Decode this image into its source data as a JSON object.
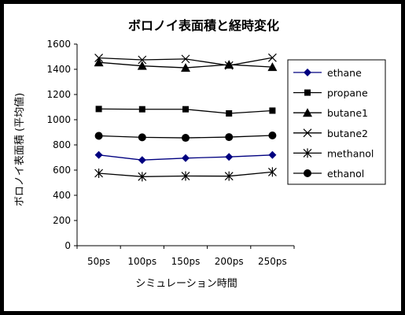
{
  "chart_data": {
    "type": "line",
    "title": "ボロノイ表面積と経時変化",
    "xlabel": "シミュレーション時間",
    "ylabel": "ボロノイ表面積 (平均値)",
    "categories": [
      "50ps",
      "100ps",
      "150ps",
      "200ps",
      "250ps"
    ],
    "ylim": [
      0,
      1600
    ],
    "yticks": [
      0,
      200,
      400,
      600,
      800,
      1000,
      1200,
      1400,
      1600
    ],
    "grid": false,
    "legend_position": "right",
    "series": [
      {
        "name": "ethane",
        "marker": "diamond",
        "color": "#000080",
        "values": [
          720,
          680,
          695,
          705,
          720
        ]
      },
      {
        "name": "propane",
        "marker": "square",
        "color": "#000000",
        "values": [
          1085,
          1083,
          1083,
          1050,
          1072
        ]
      },
      {
        "name": "butane1",
        "marker": "triangle",
        "color": "#000000",
        "values": [
          1455,
          1427,
          1412,
          1437,
          1418
        ]
      },
      {
        "name": "butane2",
        "marker": "x",
        "color": "#000000",
        "values": [
          1490,
          1475,
          1482,
          1430,
          1492
        ]
      },
      {
        "name": "methanol",
        "marker": "star",
        "color": "#000000",
        "values": [
          575,
          548,
          553,
          552,
          585
        ]
      },
      {
        "name": "ethanol",
        "marker": "circle",
        "color": "#000000",
        "values": [
          872,
          860,
          856,
          862,
          875
        ]
      }
    ]
  }
}
